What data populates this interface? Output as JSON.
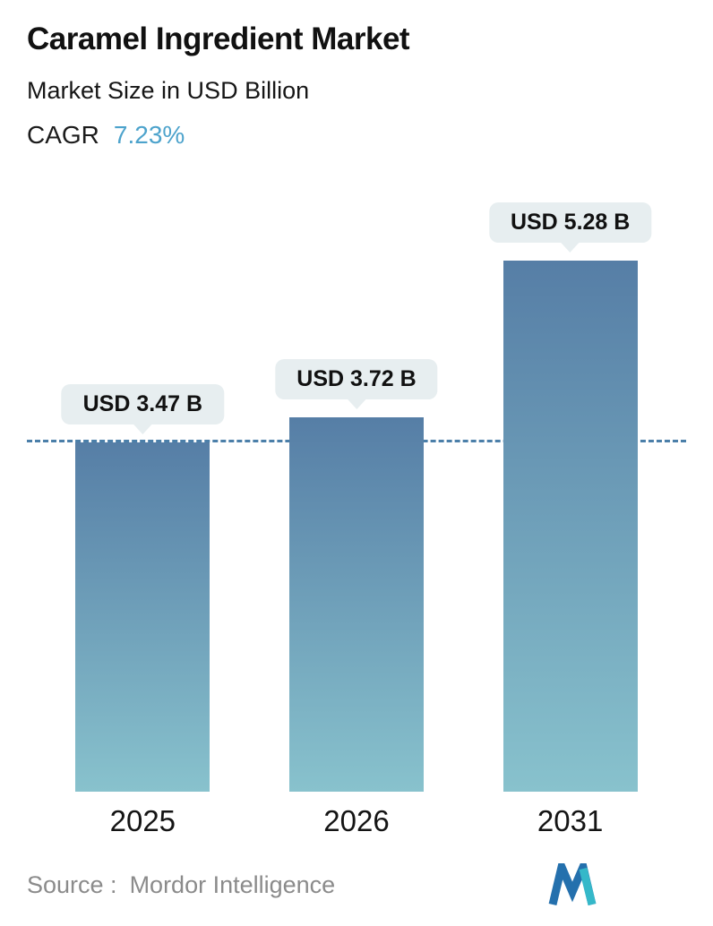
{
  "header": {
    "title": "Caramel Ingredient Market",
    "subtitle": "Market Size in USD Billion",
    "cagr_label": "CAGR",
    "cagr_value": "7.23%"
  },
  "chart_data": {
    "type": "bar",
    "categories": [
      "2025",
      "2026",
      "2031"
    ],
    "values": [
      3.47,
      3.72,
      5.28
    ],
    "value_labels": [
      "USD 3.47 B",
      "USD 3.72 B",
      "USD 5.28 B"
    ],
    "title": "Caramel Ingredient Market",
    "xlabel": "",
    "ylabel": "Market Size in USD Billion",
    "ylim": [
      0,
      5.28
    ],
    "baseline_value": 3.47,
    "baseline_style": "dashed horizontal line at 2025 bar top",
    "legend": "none",
    "grid": false,
    "bar_gradient_top": "#567ea6",
    "bar_gradient_bottom": "#88c2cd",
    "dashed_line_color": "#4b7fa9",
    "badge_bg": "#e7eef0"
  },
  "footer": {
    "source_label": "Source :",
    "source_value": "Mordor Intelligence",
    "logo_icon": "mordor-intelligence-logo"
  },
  "colors": {
    "cagr_value": "#4da3cc",
    "title": "#111111",
    "source_text": "#8b8b8b",
    "logo_blue": "#2470ad",
    "logo_teal": "#35b8c9"
  }
}
